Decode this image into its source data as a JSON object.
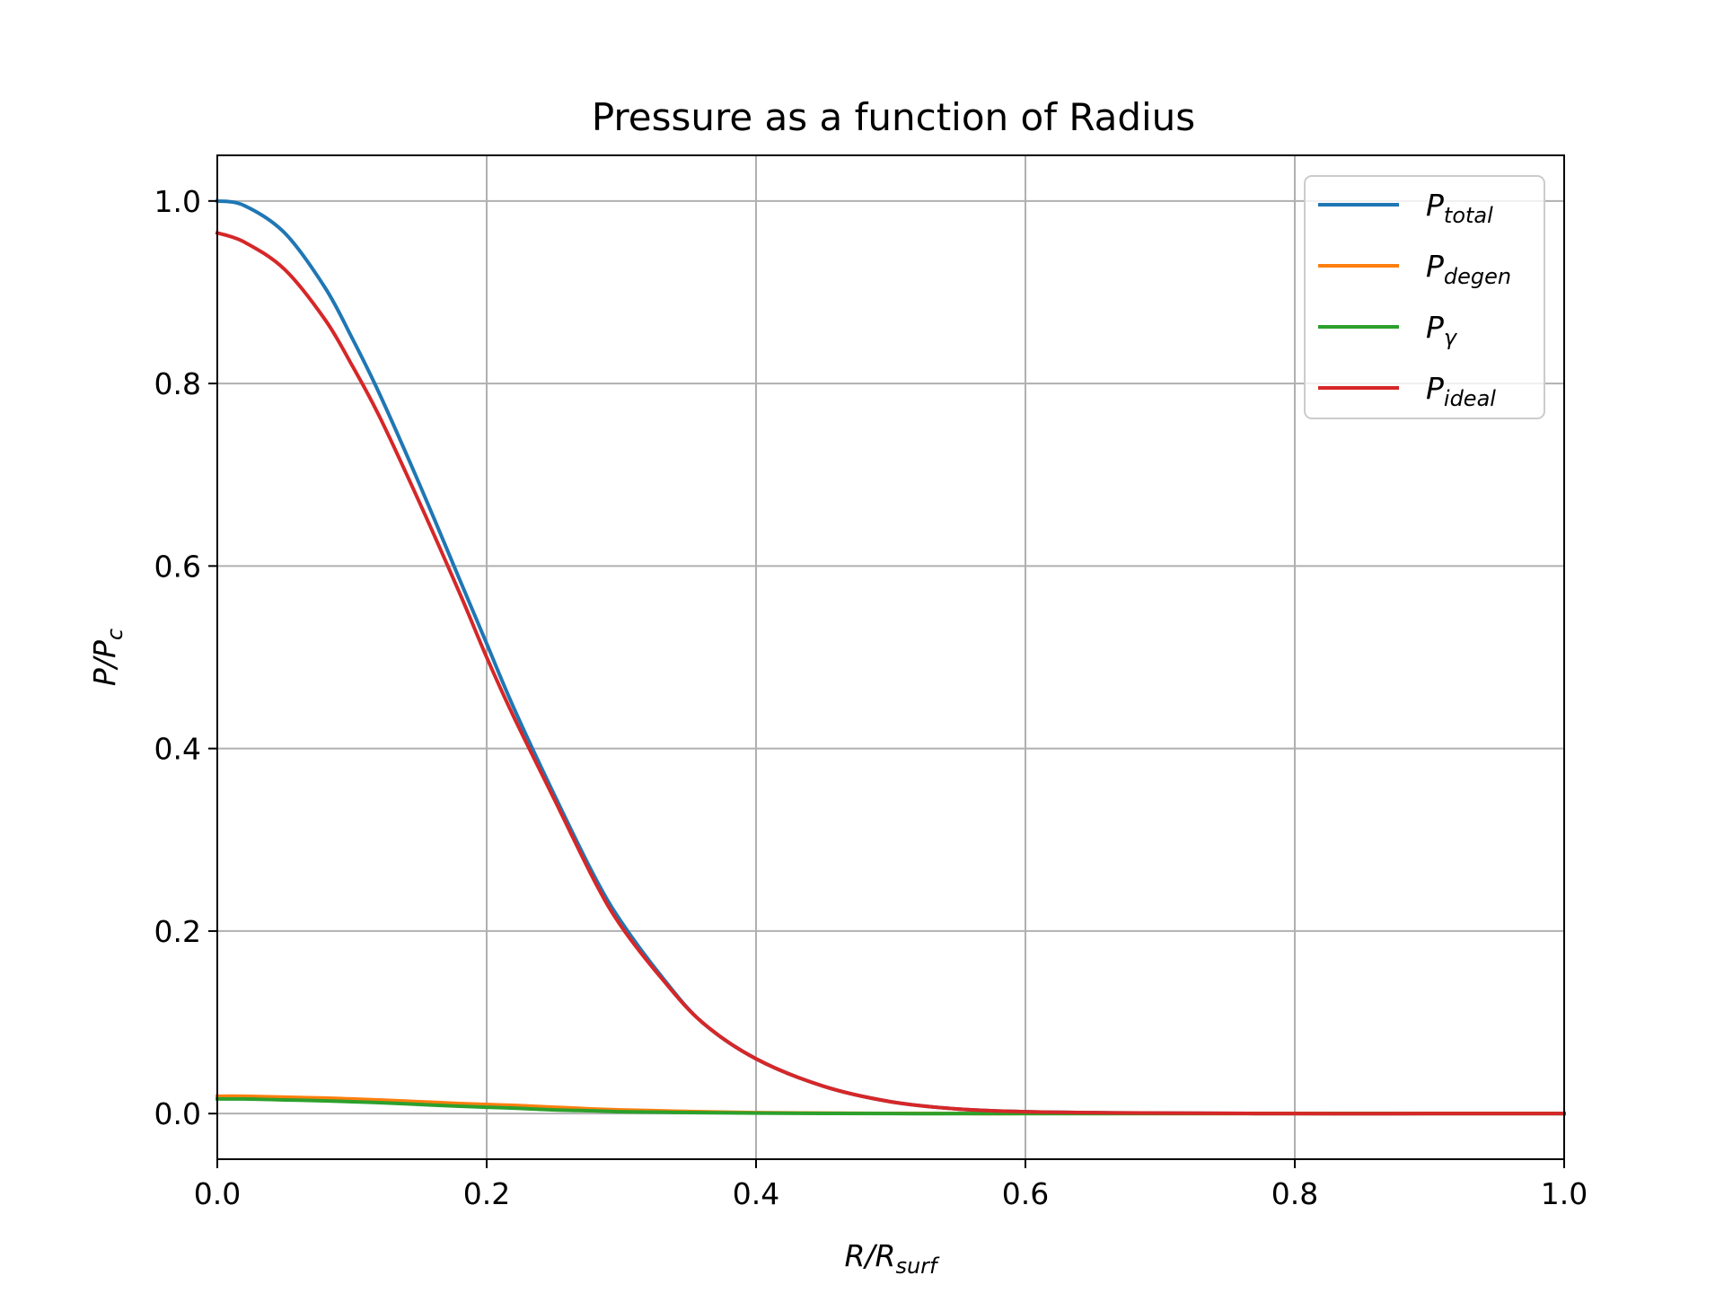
{
  "chart_data": {
    "type": "line",
    "title": "Pressure as a function of Radius",
    "xlabel": {
      "base": "R/R",
      "sub": "surf"
    },
    "ylabel": {
      "base": "P/P",
      "sub": "c"
    },
    "xlim": [
      0.0,
      1.0
    ],
    "ylim": [
      -0.05,
      1.05
    ],
    "xticks": [
      0.0,
      0.2,
      0.4,
      0.6,
      0.8,
      1.0
    ],
    "xtick_labels": [
      "0.0",
      "0.2",
      "0.4",
      "0.6",
      "0.8",
      "1.0"
    ],
    "yticks": [
      0.0,
      0.2,
      0.4,
      0.6,
      0.8,
      1.0
    ],
    "ytick_labels": [
      "0.0",
      "0.2",
      "0.4",
      "0.6",
      "0.8",
      "1.0"
    ],
    "grid": true,
    "legend_position": "top-right",
    "x": [
      0.0,
      0.02,
      0.05,
      0.08,
      0.1,
      0.12,
      0.15,
      0.18,
      0.2,
      0.22,
      0.25,
      0.28,
      0.3,
      0.33,
      0.36,
      0.4,
      0.45,
      0.5,
      0.55,
      0.6,
      0.65,
      0.7,
      0.8,
      0.9,
      1.0
    ],
    "series": [
      {
        "name": {
          "base": "P",
          "sub": "total"
        },
        "color": "#1f77b4",
        "values": [
          1.0,
          0.995,
          0.965,
          0.905,
          0.85,
          0.79,
          0.69,
          0.585,
          0.515,
          0.445,
          0.35,
          0.26,
          0.21,
          0.15,
          0.1,
          0.06,
          0.03,
          0.013,
          0.005,
          0.002,
          0.001,
          0.0005,
          0.0,
          0.0,
          0.0
        ]
      },
      {
        "name": {
          "base": "P",
          "sub": "degen"
        },
        "color": "#ff7f0e",
        "values": [
          0.019,
          0.019,
          0.018,
          0.017,
          0.016,
          0.015,
          0.013,
          0.011,
          0.01,
          0.009,
          0.007,
          0.005,
          0.004,
          0.003,
          0.002,
          0.001,
          0.0005,
          0.0002,
          0.0,
          0.0,
          0.0,
          0.0,
          0.0,
          0.0,
          0.0
        ]
      },
      {
        "name": {
          "base": "P",
          "sub": "γ"
        },
        "color": "#2ca02c",
        "values": [
          0.016,
          0.016,
          0.015,
          0.014,
          0.013,
          0.012,
          0.01,
          0.008,
          0.007,
          0.006,
          0.004,
          0.003,
          0.002,
          0.0015,
          0.001,
          0.0005,
          0.0002,
          0.0,
          0.0,
          0.0,
          0.0,
          0.0,
          0.0,
          0.0,
          0.0
        ]
      },
      {
        "name": {
          "base": "P",
          "sub": "ideal"
        },
        "color": "#d62728",
        "values": [
          0.965,
          0.955,
          0.925,
          0.87,
          0.82,
          0.765,
          0.67,
          0.57,
          0.5,
          0.435,
          0.345,
          0.255,
          0.205,
          0.148,
          0.1,
          0.06,
          0.03,
          0.013,
          0.005,
          0.002,
          0.001,
          0.0005,
          0.0,
          0.0,
          0.0
        ]
      }
    ]
  }
}
